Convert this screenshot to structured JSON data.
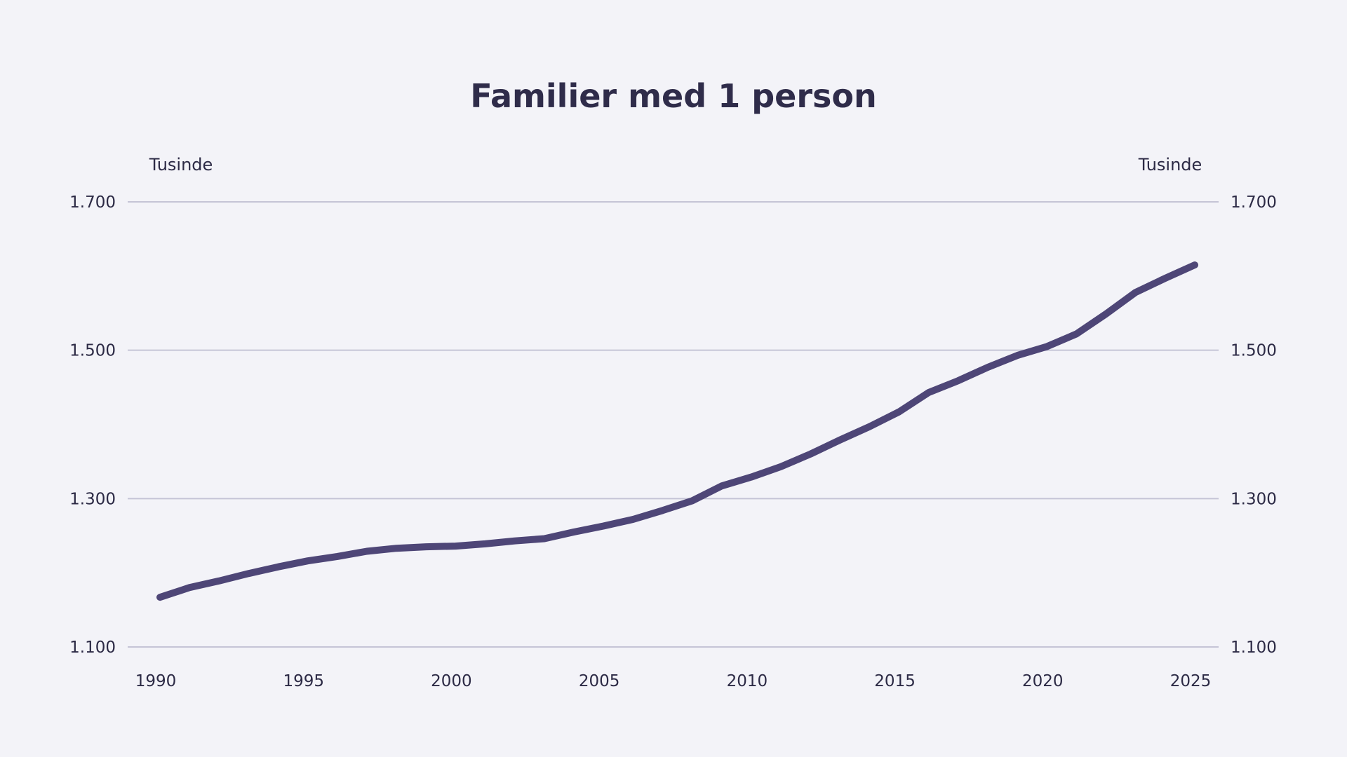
{
  "chart_data": {
    "type": "line",
    "title": "Familier med 1 person",
    "ylabel_left": "Tusinde",
    "ylabel_right": "Tusinde",
    "xlim": [
      1990,
      2025
    ],
    "ylim": [
      1100,
      1700
    ],
    "yticks": [
      1100,
      1300,
      1500,
      1700
    ],
    "ytick_labels": [
      "1.100",
      "1.300",
      "1.500",
      "1.700"
    ],
    "xticks": [
      1990,
      1995,
      2000,
      2005,
      2010,
      2015,
      2020,
      2025
    ],
    "xtick_labels": [
      "1990",
      "1995",
      "2000",
      "2005",
      "2010",
      "2015",
      "2020",
      "2025"
    ],
    "grid": true,
    "line_color": "#4e4677",
    "series": [
      {
        "x": [
          1990,
          1991,
          1992,
          1993,
          1994,
          1995,
          1996,
          1997,
          1998,
          1999,
          2000,
          2001,
          2002,
          2003,
          2004,
          2005,
          2006,
          2007,
          2008,
          2009,
          2010,
          2011,
          2012,
          2013,
          2014,
          2015,
          2016,
          2017,
          2018,
          2019,
          2020,
          2021,
          2022,
          2023,
          2024,
          2025
        ],
        "values": [
          1167,
          1180,
          1189,
          1199,
          1208,
          1216,
          1222,
          1229,
          1233,
          1235,
          1236,
          1239,
          1243,
          1246,
          1255,
          1263,
          1272,
          1284,
          1297,
          1317,
          1329,
          1343,
          1360,
          1379,
          1397,
          1417,
          1443,
          1459,
          1477,
          1493,
          1505,
          1522,
          1549,
          1578,
          1597,
          1615
        ]
      }
    ]
  }
}
